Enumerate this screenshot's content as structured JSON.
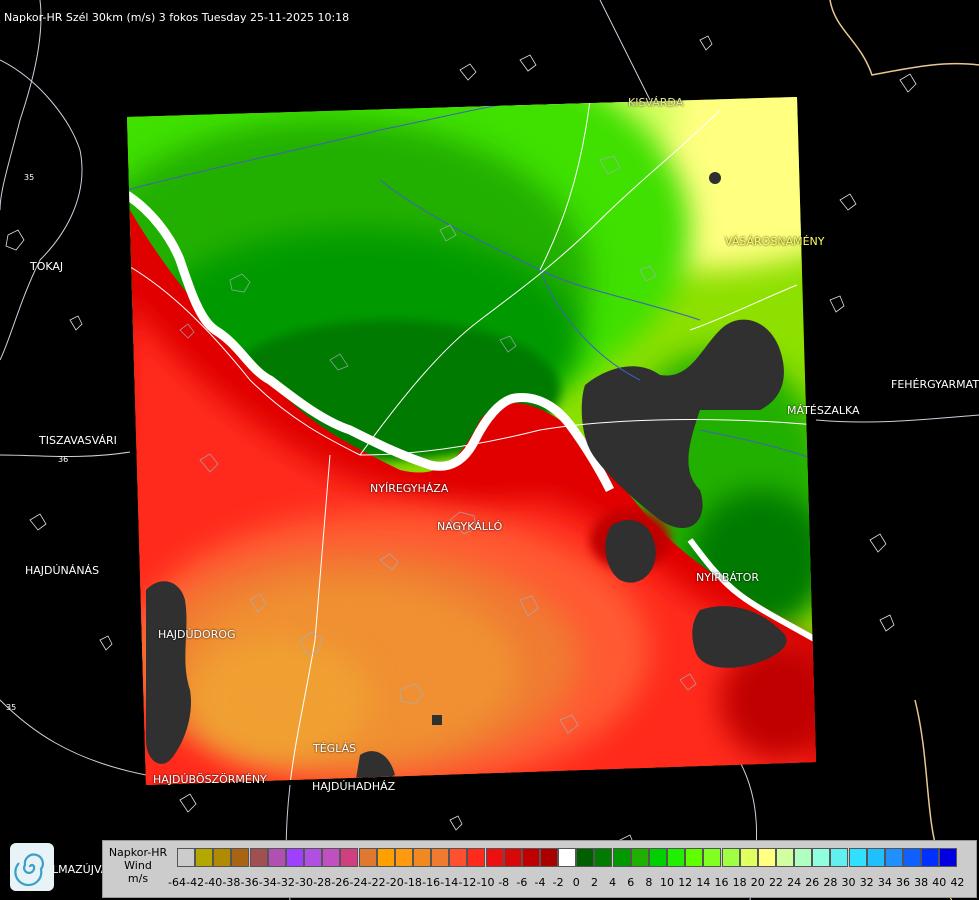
{
  "title": "Napkor-HR Szél 30km (m/s) 3 fokos Tuesday 25-11-2025 10:18",
  "cities": [
    "TOKAJ",
    "TISZAVASVÁRI",
    "HAJDÚNÁNÁS",
    "HAJDÚDOROG",
    "HAJDÚBÖSZÖRMÉNY",
    "HAJDÚHADHÁZ",
    "TÉGLÁS",
    "NYÍREGYHÁZA",
    "NAGYKÁLLÓ",
    "NYÍRBÁTOR",
    "MÁTÉSZALKA",
    "FEHÉRGYARMAT",
    "VÁSÁROSNAMÉNY",
    "KISVÁRDA"
  ],
  "road_labels": [
    "35",
    "36",
    "35"
  ],
  "legend": {
    "line1": "Napkor-HR",
    "line2": "Wind",
    "line3": "m/s",
    "ticks": [
      "-64",
      "-42",
      "-40",
      "-38",
      "-36",
      "-34",
      "-32",
      "-30",
      "-28",
      "-26",
      "-24",
      "-22",
      "-20",
      "-18",
      "-16",
      "-14",
      "-12",
      "-10",
      "-8",
      "-6",
      "-4",
      "-2",
      "0",
      "2",
      "4",
      "6",
      "8",
      "10",
      "12",
      "14",
      "16",
      "18",
      "20",
      "22",
      "24",
      "26",
      "28",
      "30",
      "32",
      "34",
      "36",
      "38",
      "40",
      "42"
    ],
    "colors": [
      "#cccccc",
      "#b3a800",
      "#b08a00",
      "#a86412",
      "#a05050",
      "#b050b0",
      "#a040ff",
      "#b050e0",
      "#c050c0",
      "#d04080",
      "#e07830",
      "#ffa000",
      "#ff9a10",
      "#f08a20",
      "#f07a30",
      "#ff5030",
      "#ff2a1a",
      "#ee1010",
      "#d80808",
      "#c00000",
      "#aa0000",
      "#ffffff",
      "#006000",
      "#007d00",
      "#009a00",
      "#20b000",
      "#00d000",
      "#20f000",
      "#60ff00",
      "#80ff20",
      "#a0ff40",
      "#e0ff60",
      "#ffff80",
      "#d0ffa0",
      "#b0ffc0",
      "#90ffe0",
      "#60f0f0",
      "#30e0ff",
      "#20c0ff",
      "#2090ff",
      "#1060ff",
      "#0030ff",
      "#0000e0"
    ]
  },
  "logo_partial_text": "LMAZÚJVÁR"
}
